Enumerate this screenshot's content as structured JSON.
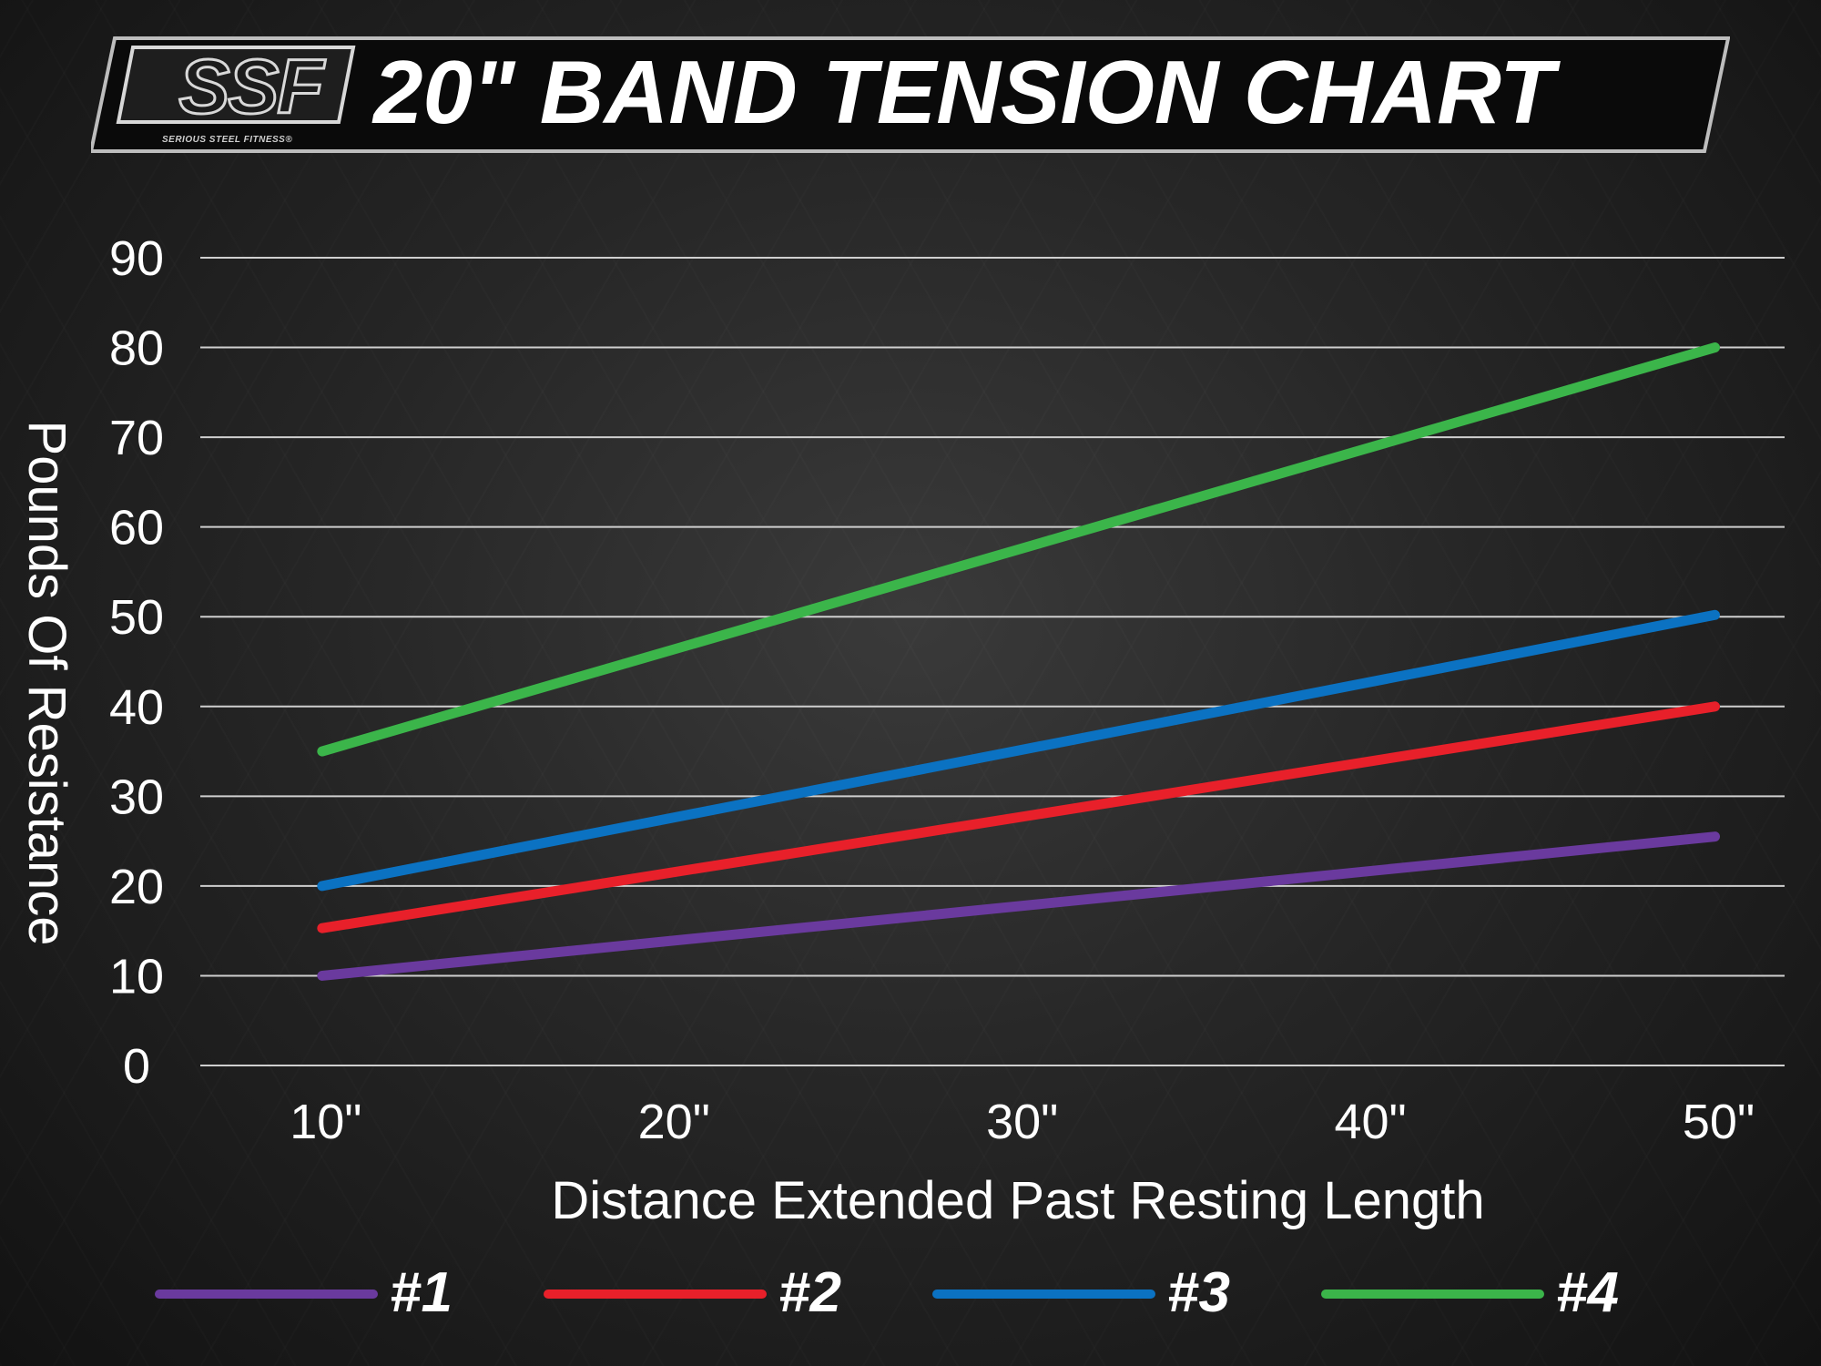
{
  "header": {
    "logo_text": "SSF",
    "logo_tagline": "SERIOUS STEEL FITNESS®",
    "title": "20\" BAND TENSION CHART"
  },
  "chart_data": {
    "type": "line",
    "title": "20\" BAND TENSION CHART",
    "xlabel": "Distance Extended Past Resting Length",
    "ylabel": "Pounds Of Resistance",
    "categories": [
      "10\"",
      "20\"",
      "30\"",
      "40\"",
      "50\""
    ],
    "x": [
      10,
      20,
      30,
      40,
      50
    ],
    "xlim": [
      6.5,
      52
    ],
    "ylim": [
      0,
      90
    ],
    "yticks": [
      0,
      10,
      20,
      30,
      40,
      50,
      60,
      70,
      80,
      90
    ],
    "grid": true,
    "legend_position": "bottom",
    "series": [
      {
        "name": "#1",
        "color": "#6a3a9e",
        "x": [
          10,
          50
        ],
        "values": [
          10,
          25.5
        ]
      },
      {
        "name": "#2",
        "color": "#e8202a",
        "x": [
          10,
          50
        ],
        "values": [
          15.3,
          40
        ]
      },
      {
        "name": "#3",
        "color": "#0b72c2",
        "x": [
          10,
          50
        ],
        "values": [
          20,
          50.2
        ]
      },
      {
        "name": "#4",
        "color": "#3bb54a",
        "x": [
          10,
          50
        ],
        "values": [
          35,
          80
        ]
      }
    ]
  }
}
